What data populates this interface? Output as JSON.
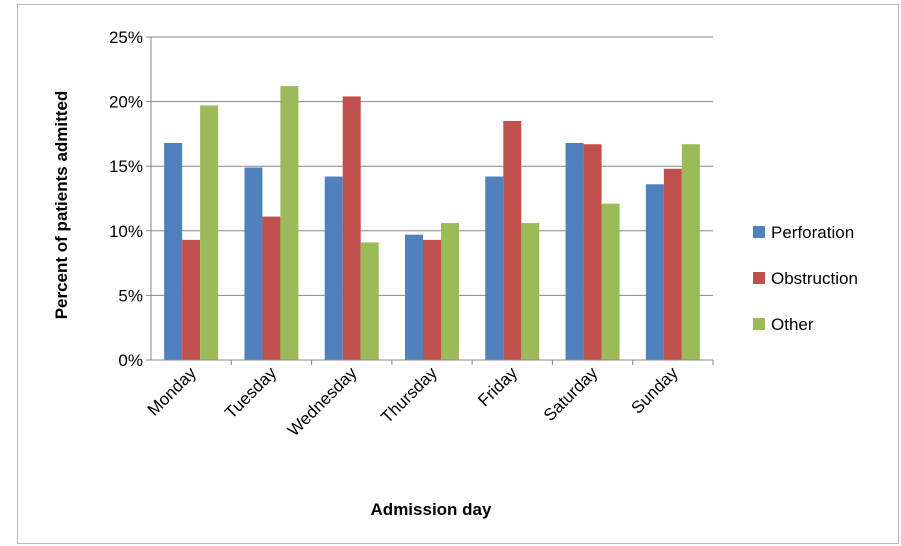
{
  "chart_data": {
    "type": "bar",
    "categories": [
      "Monday",
      "Tuesday",
      "Wednesday",
      "Thursday",
      "Friday",
      "Saturday",
      "Sunday"
    ],
    "series": [
      {
        "name": "Perforation",
        "color": "#4f81bd",
        "values": [
          16.8,
          14.9,
          14.2,
          9.7,
          14.2,
          16.8,
          13.6
        ]
      },
      {
        "name": "Obstruction",
        "color": "#c0504d",
        "values": [
          9.3,
          11.1,
          20.4,
          9.3,
          18.5,
          16.7,
          14.8
        ]
      },
      {
        "name": "Other",
        "color": "#9bbb59",
        "values": [
          19.7,
          21.2,
          9.1,
          10.6,
          10.6,
          12.1,
          16.7
        ]
      }
    ],
    "title": "",
    "xlabel": "Admission day",
    "ylabel": "Percent of patients admitted",
    "ylim": [
      0,
      25
    ],
    "yticks": [
      0,
      5,
      10,
      15,
      20,
      25
    ],
    "ytick_labels": [
      "0%",
      "5%",
      "10%",
      "15%",
      "20%",
      "25%"
    ],
    "grid": true,
    "legend_position": "right"
  }
}
